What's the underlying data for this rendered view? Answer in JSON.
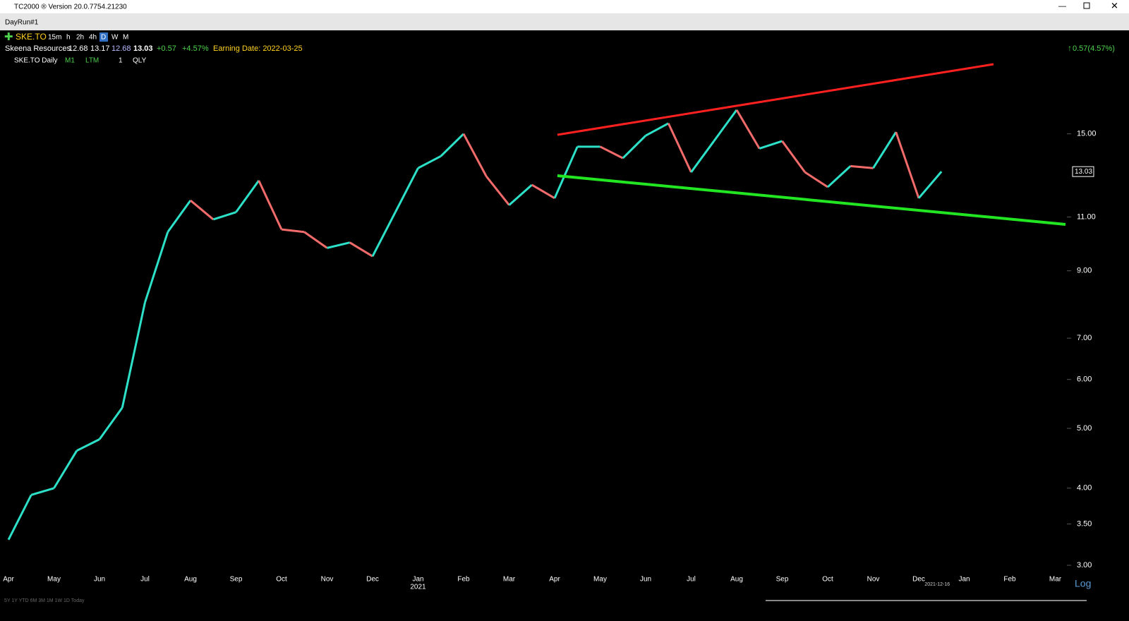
{
  "window": {
    "title": "TC2000 ® Version 20.0.7754.21230",
    "tab": "DayRun#1"
  },
  "toolbar": {
    "symbol": "SKE.TO",
    "timeframes": [
      "15m",
      "h",
      "2h",
      "4h",
      "D",
      "W",
      "M"
    ],
    "chart_name": "SKE.TO Daily",
    "options": [
      "M1",
      "LTM",
      "1",
      "QLY"
    ],
    "change_summary": "0.57(4.57%)"
  },
  "quote": {
    "name": "Skeena Resources",
    "prices": [
      "12.68",
      "13.17",
      "12.68",
      "13.03"
    ],
    "change": "+0.57",
    "change_pct": "+4.57%",
    "earnings": "Earning Date: 2022-03-25"
  },
  "ranges": "5Y  1Y  YTD  6M  3M  1M  1W  1D  Today",
  "chart_data": {
    "type": "line",
    "categories": [
      "Apr",
      null,
      "May",
      null,
      "Jun",
      null,
      "Jul",
      null,
      "Aug",
      null,
      "Sep",
      null,
      "Oct",
      null,
      "Nov",
      null,
      "Dec",
      null,
      "Jan",
      null,
      "Feb",
      null,
      "Mar",
      null,
      "Apr",
      null,
      "May",
      null,
      "Jun",
      null,
      "Jul",
      null,
      "Aug",
      null,
      "Sep",
      null,
      "Oct",
      null,
      "Nov",
      null,
      "Dec",
      null,
      "Jan",
      null,
      "Feb",
      null,
      "Mar",
      null
    ],
    "year_label": "2021",
    "date_marker": "2021-12-16",
    "series": [
      {
        "name": "SKE.TO",
        "color": "#2de0c8",
        "down_color": "#f26b6b",
        "values": [
          3.3,
          3.9,
          4.0,
          4.6,
          4.8,
          5.4,
          8.0,
          10.4,
          11.7,
          10.9,
          11.2,
          12.6,
          10.5,
          10.4,
          9.8,
          10.0,
          9.5,
          11.2,
          13.2,
          13.8,
          15.0,
          12.8,
          11.5,
          12.4,
          11.8,
          14.3,
          14.3,
          13.7,
          14.9,
          15.6,
          13.0,
          14.6,
          16.4,
          14.2,
          14.6,
          13.0,
          12.3,
          13.3,
          13.2,
          15.1,
          11.8,
          13.03,
          null,
          null,
          null,
          null,
          null,
          null
        ]
      }
    ],
    "last_value_label": 13.03,
    "log_scale": true,
    "scale_label": "Log",
    "ylim": [
      2.93,
      19.5
    ],
    "yticks": [
      {
        "value": 3,
        "label": "3.00"
      },
      {
        "value": 3.5,
        "label": "3.50"
      },
      {
        "value": 4,
        "label": "4.00"
      },
      {
        "value": 5,
        "label": "5.00"
      },
      {
        "value": 6,
        "label": "6.00"
      },
      {
        "value": 7,
        "label": "7.00"
      },
      {
        "value": 9,
        "label": "9.00"
      },
      {
        "value": 11,
        "label": "11.00"
      },
      {
        "value": 15,
        "label": "15.00"
      }
    ]
  }
}
